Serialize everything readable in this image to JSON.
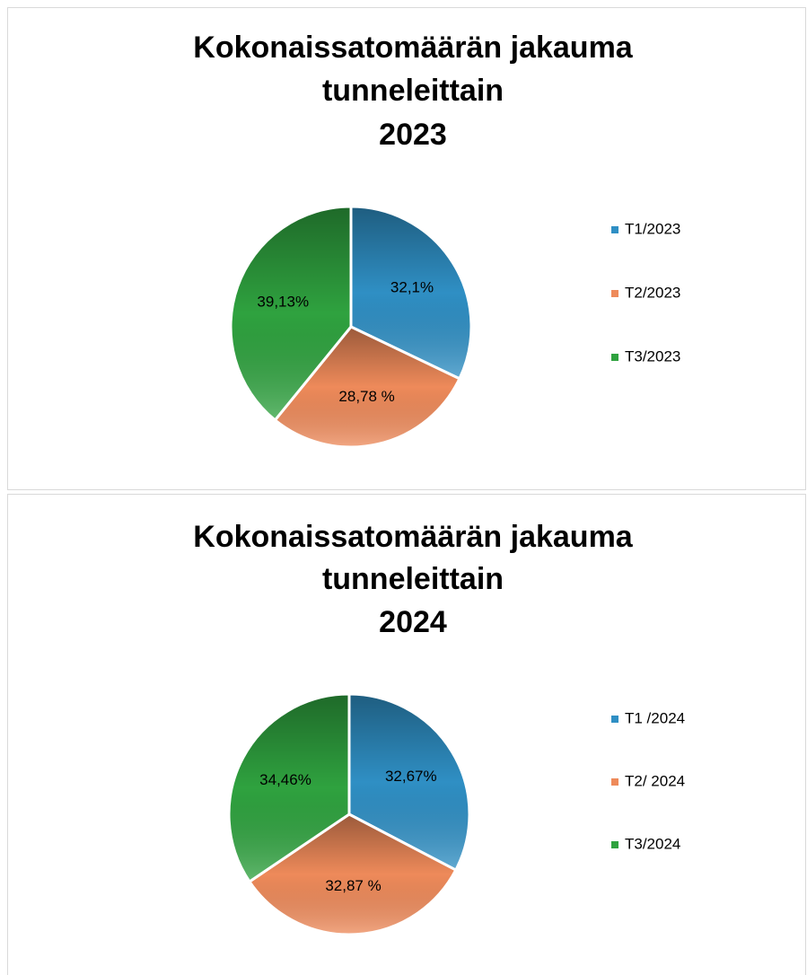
{
  "chart_data": [
    {
      "type": "pie",
      "title": [
        "Kokonaissatomäärän jakauma",
        "tunneleittain",
        "2023"
      ],
      "categories": [
        "T1/2023",
        "T2/2023",
        "T3/2023"
      ],
      "values": [
        32.1,
        28.78,
        39.13
      ],
      "value_labels": [
        "32,1%",
        "28,78 %",
        "39,13%"
      ],
      "colors": [
        "#2f8fc4",
        "#ee8a5a",
        "#2fa23f"
      ],
      "legend": "right"
    },
    {
      "type": "pie",
      "title": [
        "Kokonaissatomäärän jakauma",
        "tunneleittain",
        "2024"
      ],
      "categories": [
        "T1 /2024",
        "T2/ 2024",
        "T3/2024"
      ],
      "values": [
        32.67,
        32.87,
        34.46
      ],
      "value_labels": [
        "32,67%",
        "32,87 %",
        "34,46%"
      ],
      "colors": [
        "#2f8fc4",
        "#ee8a5a",
        "#2fa23f"
      ],
      "legend": "right"
    }
  ]
}
